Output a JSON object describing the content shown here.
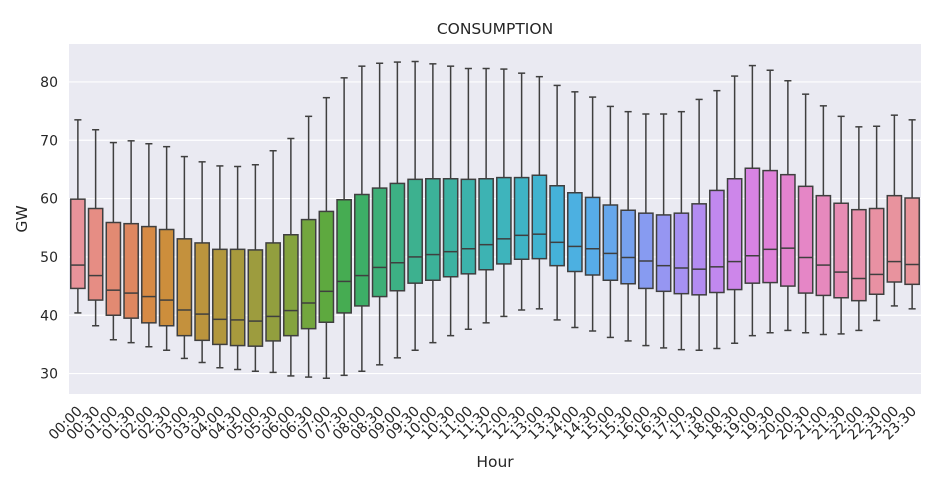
{
  "chart_data": {
    "type": "box",
    "title": "CONSUMPTION",
    "xlabel": "Hour",
    "ylabel": "GW",
    "ylim": [
      26.5,
      86.5
    ],
    "yticks": [
      30,
      40,
      50,
      60,
      70,
      80
    ],
    "grid": true,
    "categories": [
      "00:00",
      "00:30",
      "01:00",
      "01:30",
      "02:00",
      "02:30",
      "03:00",
      "03:30",
      "04:00",
      "04:30",
      "05:00",
      "05:30",
      "06:00",
      "06:30",
      "07:00",
      "07:30",
      "08:00",
      "08:30",
      "09:00",
      "09:30",
      "10:00",
      "10:30",
      "11:00",
      "11:30",
      "12:00",
      "12:30",
      "13:00",
      "13:30",
      "14:00",
      "14:30",
      "15:00",
      "15:30",
      "16:00",
      "16:30",
      "17:00",
      "17:30",
      "18:00",
      "18:30",
      "19:00",
      "19:30",
      "20:00",
      "20:30",
      "21:00",
      "21:30",
      "22:00",
      "22:30",
      "23:00",
      "23:30"
    ],
    "colors": [
      "#e8939a",
      "#e68d84",
      "#e28a72",
      "#de8760",
      "#d68a45",
      "#cd8e3c",
      "#c4913d",
      "#bb943d",
      "#b2973d",
      "#a89a3d",
      "#9d9c3e",
      "#929f3e",
      "#84a33e",
      "#73a63e",
      "#5ea93f",
      "#46ac52",
      "#3dae67",
      "#3daf77",
      "#3db084",
      "#3db18f",
      "#3cb299",
      "#3cb2a2",
      "#3cb3ab",
      "#3db3b3",
      "#3eb4bc",
      "#3fb4c5",
      "#41b3cf",
      "#45b2d9",
      "#4cb0e1",
      "#57ace8",
      "#66a7ec",
      "#76a1ef",
      "#879bf1",
      "#9696f2",
      "#a691f2",
      "#b38cf1",
      "#c188ef",
      "#cd86ea",
      "#d783e3",
      "#df81d9",
      "#e383cf",
      "#e586c6",
      "#e689bd",
      "#e78cb4",
      "#e88fab",
      "#e891a3",
      "#e8939e",
      "#e8949a"
    ],
    "boxes": [
      {
        "whislo": 40.4,
        "q1": 44.6,
        "med": 48.6,
        "q3": 59.9,
        "whishi": 73.5
      },
      {
        "whislo": 38.2,
        "q1": 42.6,
        "med": 46.8,
        "q3": 58.3,
        "whishi": 71.8
      },
      {
        "whislo": 35.8,
        "q1": 40.0,
        "med": 44.3,
        "q3": 55.9,
        "whishi": 69.6
      },
      {
        "whislo": 35.3,
        "q1": 39.5,
        "med": 43.8,
        "q3": 55.7,
        "whishi": 69.9
      },
      {
        "whislo": 34.6,
        "q1": 38.7,
        "med": 43.2,
        "q3": 55.2,
        "whishi": 69.4
      },
      {
        "whislo": 34.0,
        "q1": 38.2,
        "med": 42.6,
        "q3": 54.7,
        "whishi": 68.9
      },
      {
        "whislo": 32.6,
        "q1": 36.5,
        "med": 40.9,
        "q3": 53.1,
        "whishi": 67.2
      },
      {
        "whislo": 31.9,
        "q1": 35.7,
        "med": 40.2,
        "q3": 52.4,
        "whishi": 66.3
      },
      {
        "whislo": 31.0,
        "q1": 35.0,
        "med": 39.3,
        "q3": 51.3,
        "whishi": 65.6
      },
      {
        "whislo": 30.7,
        "q1": 34.8,
        "med": 39.2,
        "q3": 51.3,
        "whishi": 65.5
      },
      {
        "whislo": 30.4,
        "q1": 34.7,
        "med": 39.0,
        "q3": 51.2,
        "whishi": 65.8
      },
      {
        "whislo": 30.2,
        "q1": 35.6,
        "med": 39.8,
        "q3": 52.4,
        "whishi": 68.2
      },
      {
        "whislo": 29.6,
        "q1": 36.5,
        "med": 40.8,
        "q3": 53.8,
        "whishi": 70.3
      },
      {
        "whislo": 29.4,
        "q1": 37.7,
        "med": 42.1,
        "q3": 56.4,
        "whishi": 74.1
      },
      {
        "whislo": 29.2,
        "q1": 38.8,
        "med": 44.1,
        "q3": 57.8,
        "whishi": 77.3
      },
      {
        "whislo": 29.7,
        "q1": 40.4,
        "med": 45.8,
        "q3": 59.8,
        "whishi": 80.7
      },
      {
        "whislo": 30.4,
        "q1": 41.6,
        "med": 46.8,
        "q3": 60.7,
        "whishi": 82.7
      },
      {
        "whislo": 31.5,
        "q1": 43.2,
        "med": 48.2,
        "q3": 61.8,
        "whishi": 83.2
      },
      {
        "whislo": 32.7,
        "q1": 44.2,
        "med": 49.0,
        "q3": 62.6,
        "whishi": 83.4
      },
      {
        "whislo": 34.0,
        "q1": 45.5,
        "med": 50.0,
        "q3": 63.3,
        "whishi": 83.5
      },
      {
        "whislo": 35.3,
        "q1": 46.0,
        "med": 50.4,
        "q3": 63.4,
        "whishi": 83.1
      },
      {
        "whislo": 36.5,
        "q1": 46.6,
        "med": 50.9,
        "q3": 63.4,
        "whishi": 82.7
      },
      {
        "whislo": 37.6,
        "q1": 47.1,
        "med": 51.4,
        "q3": 63.3,
        "whishi": 82.3
      },
      {
        "whislo": 38.7,
        "q1": 47.8,
        "med": 52.1,
        "q3": 63.4,
        "whishi": 82.3
      },
      {
        "whislo": 39.8,
        "q1": 48.8,
        "med": 53.1,
        "q3": 63.6,
        "whishi": 82.2
      },
      {
        "whislo": 40.9,
        "q1": 49.6,
        "med": 53.7,
        "q3": 63.6,
        "whishi": 81.5
      },
      {
        "whislo": 41.1,
        "q1": 49.7,
        "med": 53.9,
        "q3": 64.0,
        "whishi": 80.9
      },
      {
        "whislo": 39.2,
        "q1": 48.5,
        "med": 52.5,
        "q3": 62.2,
        "whishi": 79.4
      },
      {
        "whislo": 37.9,
        "q1": 47.5,
        "med": 51.8,
        "q3": 61.0,
        "whishi": 78.3
      },
      {
        "whislo": 37.3,
        "q1": 46.9,
        "med": 51.4,
        "q3": 60.2,
        "whishi": 77.4
      },
      {
        "whislo": 36.2,
        "q1": 46.0,
        "med": 50.6,
        "q3": 58.9,
        "whishi": 75.8
      },
      {
        "whislo": 35.6,
        "q1": 45.4,
        "med": 49.9,
        "q3": 58.0,
        "whishi": 74.9
      },
      {
        "whislo": 34.8,
        "q1": 44.6,
        "med": 49.3,
        "q3": 57.5,
        "whishi": 74.5
      },
      {
        "whislo": 34.4,
        "q1": 44.1,
        "med": 48.5,
        "q3": 57.2,
        "whishi": 74.5
      },
      {
        "whislo": 34.1,
        "q1": 43.7,
        "med": 48.1,
        "q3": 57.5,
        "whishi": 74.9
      },
      {
        "whislo": 34.0,
        "q1": 43.5,
        "med": 47.9,
        "q3": 59.1,
        "whishi": 77.0
      },
      {
        "whislo": 34.3,
        "q1": 43.9,
        "med": 48.3,
        "q3": 61.4,
        "whishi": 78.5
      },
      {
        "whislo": 35.2,
        "q1": 44.4,
        "med": 49.2,
        "q3": 63.4,
        "whishi": 81.0
      },
      {
        "whislo": 36.5,
        "q1": 45.5,
        "med": 50.2,
        "q3": 65.2,
        "whishi": 82.8
      },
      {
        "whislo": 37.0,
        "q1": 45.6,
        "med": 51.3,
        "q3": 64.8,
        "whishi": 82.0
      },
      {
        "whislo": 37.4,
        "q1": 45.0,
        "med": 51.5,
        "q3": 64.1,
        "whishi": 80.2
      },
      {
        "whislo": 37.0,
        "q1": 43.8,
        "med": 49.9,
        "q3": 62.1,
        "whishi": 77.9
      },
      {
        "whislo": 36.7,
        "q1": 43.4,
        "med": 48.6,
        "q3": 60.5,
        "whishi": 75.9
      },
      {
        "whislo": 36.8,
        "q1": 43.0,
        "med": 47.4,
        "q3": 59.2,
        "whishi": 74.1
      },
      {
        "whislo": 37.4,
        "q1": 42.5,
        "med": 46.3,
        "q3": 58.1,
        "whishi": 72.3
      },
      {
        "whislo": 39.1,
        "q1": 43.6,
        "med": 47.0,
        "q3": 58.3,
        "whishi": 72.4
      },
      {
        "whislo": 41.6,
        "q1": 45.7,
        "med": 49.2,
        "q3": 60.5,
        "whishi": 74.3
      },
      {
        "whislo": 41.1,
        "q1": 45.3,
        "med": 48.7,
        "q3": 60.1,
        "whishi": 73.5
      }
    ]
  }
}
